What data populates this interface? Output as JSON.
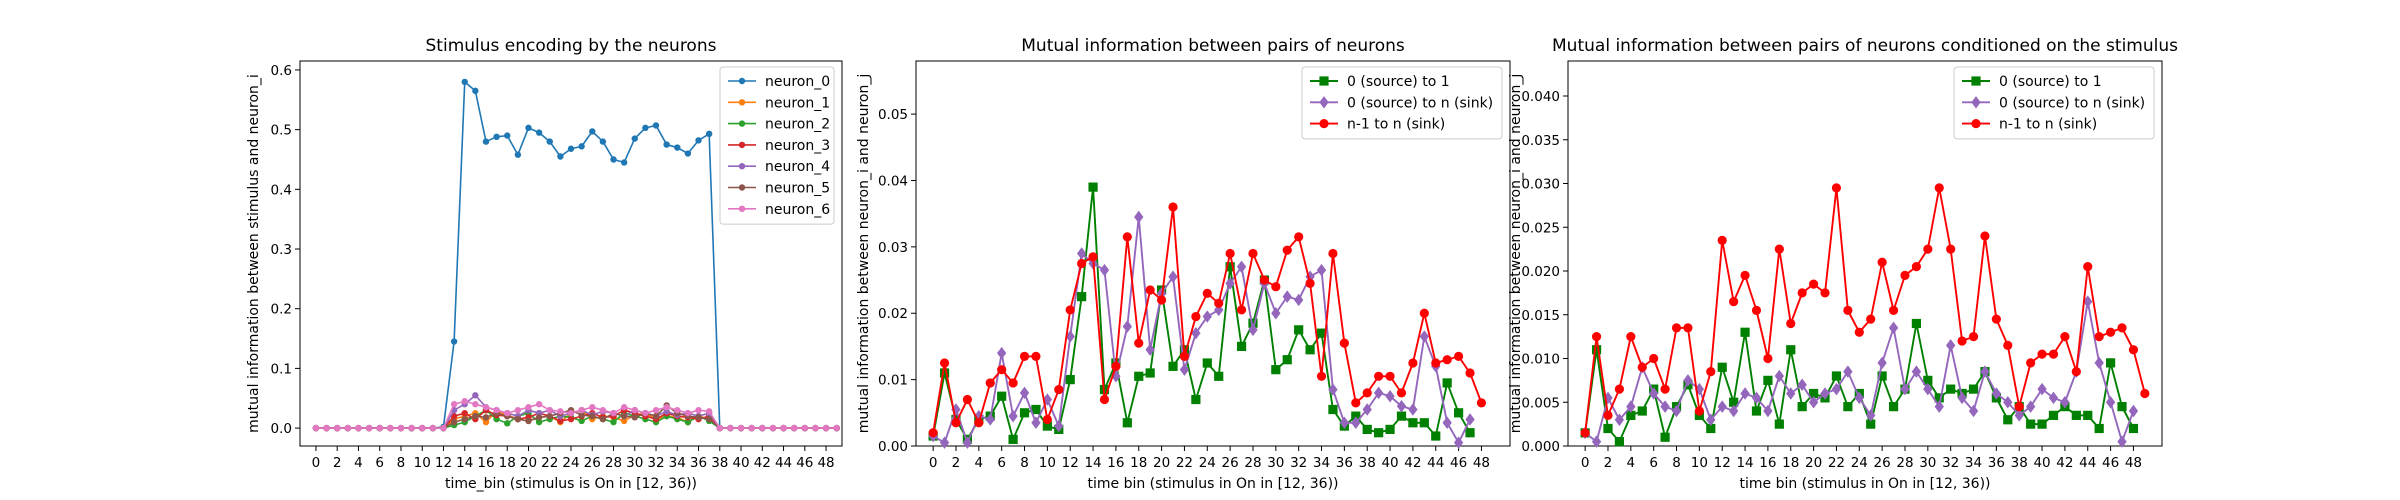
{
  "chart_data": [
    {
      "type": "line",
      "title": "Stimulus encoding by the neurons",
      "xlabel": "time_bin (stimulus is On in [12, 36))",
      "ylabel": "mutual information between stimulus and neuron_i",
      "xlim": [
        -1.5,
        49.5
      ],
      "ylim": [
        -0.03,
        0.615
      ],
      "xticks": [
        0,
        2,
        4,
        6,
        8,
        10,
        12,
        14,
        16,
        18,
        20,
        22,
        24,
        26,
        28,
        30,
        32,
        34,
        36,
        38,
        40,
        42,
        44,
        46,
        48
      ],
      "yticks": [
        0.0,
        0.1,
        0.2,
        0.3,
        0.4,
        0.5,
        0.6
      ],
      "ytick_labels": [
        "0.0",
        "0.1",
        "0.2",
        "0.3",
        "0.4",
        "0.5",
        "0.6"
      ],
      "grid": false,
      "legend": "top-right",
      "x_start": 0,
      "series": [
        {
          "name": "neuron_0",
          "color": "#1f77b4",
          "marker": "circle",
          "values": [
            0,
            0,
            0,
            0,
            0,
            0,
            0,
            0,
            0,
            0,
            0,
            0,
            0.002,
            0.145,
            0.58,
            0.565,
            0.48,
            0.488,
            0.49,
            0.458,
            0.503,
            0.495,
            0.48,
            0.455,
            0.468,
            0.472,
            0.497,
            0.48,
            0.45,
            0.445,
            0.485,
            0.503,
            0.507,
            0.475,
            0.47,
            0.46,
            0.482,
            0.493,
            0,
            0,
            0,
            0,
            0,
            0,
            0,
            0,
            0,
            0,
            0,
            0
          ]
        },
        {
          "name": "neuron_1",
          "color": "#ff7f0e",
          "marker": "circle",
          "values": [
            0,
            0,
            0,
            0,
            0,
            0,
            0,
            0,
            0,
            0,
            0,
            0,
            0,
            0.015,
            0.02,
            0.025,
            0.01,
            0.028,
            0.022,
            0.015,
            0.012,
            0.018,
            0.02,
            0.01,
            0.025,
            0.03,
            0.015,
            0.02,
            0.018,
            0.012,
            0.022,
            0.025,
            0.015,
            0.02,
            0.018,
            0.01,
            0.02,
            0.015,
            0,
            0,
            0,
            0,
            0,
            0,
            0,
            0,
            0,
            0,
            0,
            0
          ]
        },
        {
          "name": "neuron_2",
          "color": "#2ca02c",
          "marker": "circle",
          "values": [
            0,
            0,
            0,
            0,
            0,
            0,
            0,
            0,
            0,
            0,
            0,
            0,
            0,
            0.005,
            0.01,
            0.02,
            0.03,
            0.015,
            0.008,
            0.02,
            0.025,
            0.01,
            0.015,
            0.02,
            0.018,
            0.012,
            0.02,
            0.015,
            0.01,
            0.025,
            0.02,
            0.015,
            0.01,
            0.02,
            0.015,
            0.01,
            0.02,
            0.012,
            0,
            0,
            0,
            0,
            0,
            0,
            0,
            0,
            0,
            0,
            0,
            0
          ]
        },
        {
          "name": "neuron_3",
          "color": "#d62728",
          "marker": "circle",
          "values": [
            0,
            0,
            0,
            0,
            0,
            0,
            0,
            0,
            0,
            0,
            0,
            0,
            0,
            0.02,
            0.025,
            0.015,
            0.03,
            0.022,
            0.02,
            0.015,
            0.018,
            0.025,
            0.02,
            0.012,
            0.015,
            0.02,
            0.025,
            0.018,
            0.02,
            0.03,
            0.025,
            0.02,
            0.015,
            0.025,
            0.02,
            0.018,
            0.015,
            0.02,
            0,
            0,
            0,
            0,
            0,
            0,
            0,
            0,
            0,
            0,
            0,
            0
          ]
        },
        {
          "name": "neuron_4",
          "color": "#9467bd",
          "marker": "circle",
          "values": [
            0,
            0,
            0,
            0,
            0,
            0,
            0,
            0,
            0,
            0,
            0,
            0,
            0,
            0.03,
            0.04,
            0.055,
            0.035,
            0.03,
            0.025,
            0.02,
            0.03,
            0.025,
            0.03,
            0.02,
            0.025,
            0.03,
            0.022,
            0.028,
            0.025,
            0.02,
            0.03,
            0.025,
            0.02,
            0.028,
            0.022,
            0.025,
            0.02,
            0.025,
            0,
            0,
            0,
            0,
            0,
            0,
            0,
            0,
            0,
            0,
            0,
            0
          ]
        },
        {
          "name": "neuron_5",
          "color": "#8c564b",
          "marker": "circle",
          "values": [
            0,
            0,
            0,
            0,
            0,
            0,
            0,
            0,
            0,
            0,
            0,
            0,
            0,
            0.01,
            0.015,
            0.02,
            0.018,
            0.025,
            0.02,
            0.015,
            0.012,
            0.018,
            0.02,
            0.025,
            0.03,
            0.022,
            0.02,
            0.015,
            0.025,
            0.02,
            0.018,
            0.025,
            0.02,
            0.038,
            0.025,
            0.02,
            0.018,
            0.015,
            0,
            0,
            0,
            0,
            0,
            0,
            0,
            0,
            0,
            0,
            0,
            0
          ]
        },
        {
          "name": "neuron_6",
          "color": "#e377c2",
          "marker": "circle",
          "values": [
            0,
            0,
            0,
            0,
            0,
            0,
            0,
            0,
            0,
            0,
            0,
            0,
            0,
            0.04,
            0.045,
            0.04,
            0.035,
            0.03,
            0.025,
            0.03,
            0.035,
            0.04,
            0.03,
            0.028,
            0.025,
            0.03,
            0.035,
            0.03,
            0.025,
            0.035,
            0.03,
            0.025,
            0.03,
            0.035,
            0.03,
            0.025,
            0.03,
            0.028,
            0,
            0,
            0,
            0,
            0,
            0,
            0,
            0,
            0,
            0,
            0,
            0
          ]
        }
      ]
    },
    {
      "type": "line",
      "title": "Mutual information between pairs of neurons",
      "xlabel": "time bin (stimulus in On in [12, 36))",
      "ylabel": "mutual information between neuron_i and neuron_j",
      "xlim": [
        -1.5,
        50.5
      ],
      "ylim": [
        0,
        0.058
      ],
      "xticks": [
        0,
        2,
        4,
        6,
        8,
        10,
        12,
        14,
        16,
        18,
        20,
        22,
        24,
        26,
        28,
        30,
        32,
        34,
        36,
        38,
        40,
        42,
        44,
        46,
        48
      ],
      "yticks": [
        0.0,
        0.01,
        0.02,
        0.03,
        0.04,
        0.05
      ],
      "ytick_labels": [
        "0.00",
        "0.01",
        "0.02",
        "0.03",
        "0.04",
        "0.05"
      ],
      "grid": false,
      "legend": "top-right",
      "x_start": 0,
      "series": [
        {
          "name": "0 (source) to 1",
          "color": "#008000",
          "marker": "square",
          "values": [
            0.0015,
            0.011,
            0.004,
            0.001,
            0.004,
            0.0045,
            0.0075,
            0.001,
            0.005,
            0.0055,
            0.003,
            0.0025,
            0.01,
            0.0225,
            0.039,
            0.0085,
            0.0125,
            0.0035,
            0.0105,
            0.011,
            0.0235,
            0.012,
            0.0145,
            0.007,
            0.0125,
            0.0105,
            0.027,
            0.015,
            0.0185,
            0.025,
            0.0115,
            0.013,
            0.0175,
            0.0145,
            0.017,
            0.0055,
            0.003,
            0.0045,
            0.0025,
            0.002,
            0.0025,
            0.0045,
            0.0035,
            0.0035,
            0.0015,
            0.0095,
            0.005,
            0.002
          ]
        },
        {
          "name": "0 (source) to n (sink)",
          "color": "#9467bd",
          "marker": "diamond",
          "values": [
            0.0015,
            0.0005,
            0.0055,
            0.0005,
            0.0045,
            0.004,
            0.014,
            0.0045,
            0.008,
            0.0035,
            0.007,
            0.003,
            0.0165,
            0.029,
            0.0275,
            0.0265,
            0.0105,
            0.018,
            0.0345,
            0.0145,
            0.023,
            0.0255,
            0.0115,
            0.017,
            0.0195,
            0.0205,
            0.0245,
            0.027,
            0.0175,
            0.0245,
            0.02,
            0.0225,
            0.022,
            0.0255,
            0.0265,
            0.0085,
            0.0035,
            0.0035,
            0.0055,
            0.008,
            0.0075,
            0.006,
            0.0055,
            0.0165,
            0.012,
            0.0035,
            0.0005,
            0.004
          ]
        },
        {
          "name": "n-1 to n (sink)",
          "color": "#ff0000",
          "marker": "circle",
          "values": [
            0.002,
            0.0125,
            0.0035,
            0.007,
            0.0035,
            0.0095,
            0.0115,
            0.0095,
            0.0135,
            0.0135,
            0.004,
            0.0085,
            0.0205,
            0.0275,
            0.0285,
            0.007,
            0.012,
            0.0315,
            0.0155,
            0.0235,
            0.022,
            0.036,
            0.0135,
            0.0195,
            0.023,
            0.0215,
            0.029,
            0.0205,
            0.029,
            0.025,
            0.024,
            0.0295,
            0.0315,
            0.0245,
            0.0105,
            0.029,
            0.0155,
            0.0065,
            0.008,
            0.0105,
            0.0105,
            0.008,
            0.0125,
            0.02,
            0.0125,
            0.013,
            0.0135,
            0.011,
            0.0065
          ]
        }
      ]
    },
    {
      "type": "line",
      "title": "Mutual information between pairs of neurons conditioned on the stimulus",
      "xlabel": "time bin (stimulus in On in [12, 36))",
      "ylabel": "mutual information between neuron_i and neuron_j",
      "xlim": [
        -1.5,
        50.5
      ],
      "ylim": [
        0,
        0.044
      ],
      "xticks": [
        0,
        2,
        4,
        6,
        8,
        10,
        12,
        14,
        16,
        18,
        20,
        22,
        24,
        26,
        28,
        30,
        32,
        34,
        36,
        38,
        40,
        42,
        44,
        46,
        48
      ],
      "yticks": [
        0.0,
        0.005,
        0.01,
        0.015,
        0.02,
        0.025,
        0.03,
        0.035,
        0.04
      ],
      "ytick_labels": [
        "0.000",
        "0.005",
        "0.010",
        "0.015",
        "0.020",
        "0.025",
        "0.030",
        "0.035",
        "0.040"
      ],
      "grid": false,
      "legend": "top-right",
      "x_start": 0,
      "series": [
        {
          "name": "0 (source) to 1",
          "color": "#008000",
          "marker": "square",
          "values": [
            0.0015,
            0.011,
            0.002,
            0.0005,
            0.0035,
            0.004,
            0.0065,
            0.001,
            0.0045,
            0.007,
            0.0035,
            0.002,
            0.009,
            0.005,
            0.013,
            0.004,
            0.0075,
            0.0025,
            0.011,
            0.0045,
            0.006,
            0.0055,
            0.008,
            0.0045,
            0.006,
            0.0025,
            0.008,
            0.0045,
            0.0065,
            0.014,
            0.0075,
            0.0055,
            0.0065,
            0.006,
            0.0065,
            0.0085,
            0.0055,
            0.003,
            0.0045,
            0.0025,
            0.0025,
            0.0035,
            0.0045,
            0.0035,
            0.0035,
            0.002,
            0.0095,
            0.0045,
            0.002
          ]
        },
        {
          "name": "0 (source) to n (sink)",
          "color": "#9467bd",
          "marker": "diamond",
          "values": [
            0.0015,
            0.0005,
            0.0055,
            0.003,
            0.0045,
            0.009,
            0.006,
            0.0045,
            0.004,
            0.0075,
            0.0065,
            0.003,
            0.0045,
            0.004,
            0.006,
            0.0055,
            0.004,
            0.008,
            0.006,
            0.007,
            0.005,
            0.006,
            0.0065,
            0.0085,
            0.0055,
            0.0035,
            0.0095,
            0.0135,
            0.0065,
            0.0085,
            0.0065,
            0.0045,
            0.0115,
            0.0055,
            0.004,
            0.0085,
            0.006,
            0.005,
            0.0035,
            0.0045,
            0.0065,
            0.0055,
            0.005,
            0.0085,
            0.0165,
            0.0095,
            0.005,
            0.0005,
            0.004
          ]
        },
        {
          "name": "n-1 to n (sink)",
          "color": "#ff0000",
          "marker": "circle",
          "values": [
            0.0015,
            0.0125,
            0.0035,
            0.0065,
            0.0125,
            0.009,
            0.01,
            0.0065,
            0.0135,
            0.0135,
            0.004,
            0.0085,
            0.0235,
            0.0165,
            0.0195,
            0.0155,
            0.01,
            0.0225,
            0.014,
            0.0175,
            0.0185,
            0.0175,
            0.0295,
            0.0155,
            0.013,
            0.0145,
            0.021,
            0.0155,
            0.0195,
            0.0205,
            0.0225,
            0.0295,
            0.0225,
            0.012,
            0.0125,
            0.024,
            0.0145,
            0.0115,
            0.0045,
            0.0095,
            0.0105,
            0.0105,
            0.0125,
            0.0085,
            0.0205,
            0.0125,
            0.013,
            0.0135,
            0.011,
            0.006
          ]
        }
      ]
    }
  ]
}
